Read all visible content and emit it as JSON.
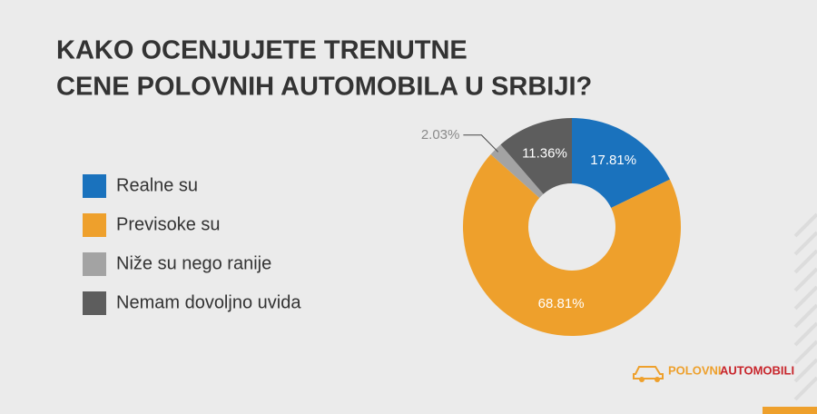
{
  "chart_data": {
    "type": "pie",
    "donut": true,
    "title": [
      "KAKO OCENJUJETE TRENUTNE",
      "CENE POLOVNIH AUTOMOBILA U SRBIJI?"
    ],
    "categories": [
      "Realne su",
      "Previsoke su",
      "Niže su nego ranije",
      "Nemam dovoljno uvida"
    ],
    "values": [
      17.81,
      68.81,
      2.03,
      11.36
    ],
    "value_labels": [
      "17.81%",
      "68.81%",
      "2.03%",
      "11.36%"
    ],
    "colors": [
      "#1a72bd",
      "#eea02c",
      "#a3a3a3",
      "#5d5d5d"
    ],
    "legend": "left"
  },
  "branding": {
    "logo": [
      "POLOVNI",
      "AUTOMOBILI"
    ]
  }
}
